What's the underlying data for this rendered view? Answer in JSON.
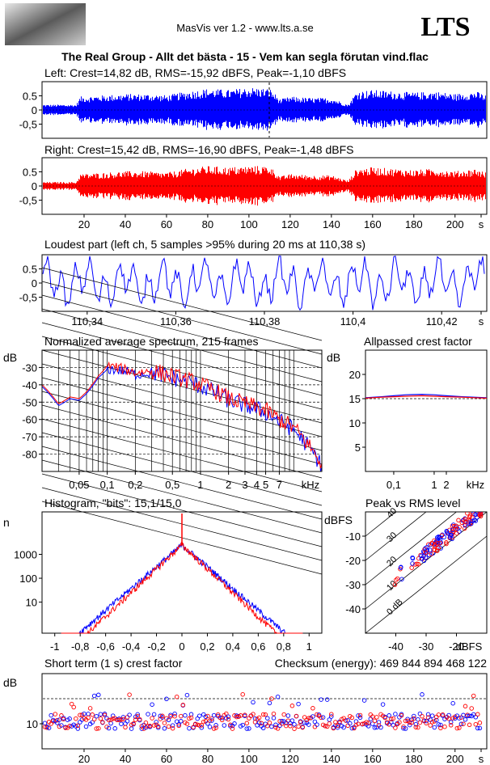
{
  "header": {
    "app_title": "MasVis ver 1.2 - www.lts.a.se",
    "logo_text": "LTS",
    "track_title": "The Real Group - Allt det bästa - 15 - Vem kan segla förutan vind.flac"
  },
  "colors": {
    "left": "#0000ff",
    "right": "#ff0000",
    "grid": "#000000"
  },
  "chart_data": [
    {
      "type": "line",
      "id": "left-waveform",
      "title": "Left: Crest=14,82 dB, RMS=-15,92 dBFS, Peak=-1,10 dBFS",
      "yticks": [
        "0.5",
        "0",
        "-0,5"
      ],
      "ylim": [
        -1,
        1
      ],
      "xlim": [
        0,
        215
      ],
      "series": [
        {
          "channel": "left",
          "envelope_time_s": [
            0,
            10,
            16,
            18,
            30,
            40,
            50,
            60,
            70,
            80,
            90,
            100,
            110,
            115,
            120,
            130,
            140,
            148,
            152,
            160,
            170,
            180,
            190,
            200,
            210,
            215
          ],
          "envelope_amp": [
            0.2,
            0.2,
            0.2,
            0.5,
            0.55,
            0.6,
            0.6,
            0.55,
            0.7,
            0.8,
            0.75,
            0.85,
            0.8,
            0.4,
            0.5,
            0.45,
            0.45,
            0.2,
            0.7,
            0.75,
            0.7,
            0.65,
            0.7,
            0.6,
            0.7,
            0.55
          ]
        }
      ]
    },
    {
      "type": "line",
      "id": "right-waveform",
      "title": "Right: Crest=15,42 dB, RMS=-16,90 dBFS, Peak=-1,48 dBFS",
      "yticks": [
        "0.5",
        "0",
        "-0,5"
      ],
      "ylim": [
        -1,
        1
      ],
      "xlim": [
        0,
        215
      ],
      "xticks": [
        "20",
        "40",
        "60",
        "80",
        "100",
        "120",
        "140",
        "160",
        "180",
        "200",
        "s"
      ],
      "series": [
        {
          "channel": "right",
          "envelope_time_s": [
            0,
            10,
            16,
            18,
            30,
            40,
            50,
            60,
            70,
            80,
            90,
            100,
            110,
            115,
            120,
            130,
            140,
            148,
            152,
            160,
            170,
            180,
            190,
            200,
            210,
            215
          ],
          "envelope_amp": [
            0.15,
            0.15,
            0.15,
            0.45,
            0.5,
            0.55,
            0.55,
            0.5,
            0.65,
            0.75,
            0.7,
            0.75,
            0.75,
            0.35,
            0.45,
            0.4,
            0.4,
            0.2,
            0.65,
            0.7,
            0.65,
            0.6,
            0.65,
            0.55,
            0.65,
            0.5
          ]
        }
      ]
    },
    {
      "type": "line",
      "id": "loudest-part",
      "title": "Loudest part (left  ch, 5 samples >95% during 20 ms at 110,38 s)",
      "yticks": [
        "0.5",
        "0",
        "-0,5"
      ],
      "ylim": [
        -1,
        1
      ],
      "xlim": [
        110.33,
        110.43
      ],
      "xticks": [
        "110,34",
        "110,36",
        "110,38",
        "110,4",
        "110,42",
        "s"
      ]
    },
    {
      "type": "line",
      "id": "average-spectrum",
      "title": "Normalized average spectrum, 215 frames",
      "ylabel": "dB",
      "yticks": [
        "-30",
        "-40",
        "-50",
        "-60",
        "-70",
        "-80"
      ],
      "ylim": [
        -90,
        -20
      ],
      "xticks": [
        "0,05",
        "0,1",
        "0,2",
        "0,5",
        "1",
        "2",
        "3",
        "4",
        "5",
        "7",
        "kHz"
      ],
      "xlim_khz": [
        0.02,
        20
      ],
      "series": [
        {
          "channel": "left",
          "freq_khz": [
            0.02,
            0.03,
            0.04,
            0.05,
            0.06,
            0.08,
            0.1,
            0.15,
            0.2,
            0.3,
            0.5,
            0.7,
            1,
            1.5,
            2,
            3,
            5,
            7,
            10,
            14,
            20
          ],
          "db": [
            -41,
            -52,
            -48,
            -49,
            -45,
            -36,
            -31,
            -32,
            -34,
            -33,
            -36,
            -38,
            -41,
            -45,
            -49,
            -52,
            -56,
            -61,
            -66,
            -75,
            -87
          ]
        },
        {
          "channel": "right",
          "freq_khz": [
            0.02,
            0.03,
            0.04,
            0.05,
            0.06,
            0.08,
            0.1,
            0.15,
            0.2,
            0.3,
            0.5,
            0.7,
            1,
            1.5,
            2,
            3,
            5,
            7,
            10,
            14,
            20
          ],
          "db": [
            -40,
            -51,
            -47,
            -48,
            -44,
            -35,
            -29,
            -31,
            -33,
            -32,
            -35,
            -37,
            -40,
            -44,
            -48,
            -51,
            -55,
            -60,
            -65,
            -74,
            -86
          ]
        }
      ]
    },
    {
      "type": "line",
      "id": "allpassed-crest",
      "title": "Allpassed crest factor",
      "ylabel": "dB",
      "yticks": [
        "20",
        "15",
        "10",
        "5"
      ],
      "ylim": [
        0,
        25
      ],
      "xticks": [
        "0,1",
        "1",
        "2",
        "kHz"
      ],
      "series": [
        {
          "channel": "left",
          "freq_khz": [
            0.02,
            0.05,
            0.1,
            0.2,
            0.5,
            1,
            2,
            5,
            10,
            20
          ],
          "db": [
            15.2,
            15.4,
            15.6,
            15.8,
            15.9,
            15.8,
            15.6,
            15.4,
            15.3,
            15.2
          ]
        },
        {
          "channel": "right",
          "freq_khz": [
            0.02,
            0.05,
            0.1,
            0.2,
            0.5,
            1,
            2,
            5,
            10,
            20
          ],
          "db": [
            15.1,
            15.3,
            15.4,
            15.5,
            15.6,
            15.5,
            15.4,
            15.3,
            15.2,
            15.1
          ]
        }
      ]
    },
    {
      "type": "line",
      "id": "histogram",
      "title": "Histogram, \"bits\": 15,1/15,0",
      "ylabel": "n",
      "yticks": [
        "1000",
        "100",
        "10"
      ],
      "xticks": [
        "-1",
        "-0,8",
        "-0,6",
        "-0,4",
        "-0,2",
        "0",
        "0,2",
        "0,4",
        "0,6",
        "0,8",
        "1"
      ],
      "xlim": [
        -1.1,
        1.1
      ],
      "scale": "log-y"
    },
    {
      "type": "scatter",
      "id": "peak-vs-rms",
      "title": "Peak vs RMS level",
      "ylabel": "dBFS",
      "xlabel": "dBFS",
      "yticks": [
        "-10",
        "-20",
        "-30",
        "-40"
      ],
      "xticks": [
        "-40",
        "-30",
        "-20"
      ],
      "xlim": [
        -50,
        -10
      ],
      "ylim": [
        -50,
        0
      ],
      "diagonals": [
        "40",
        "30",
        "20",
        "10",
        "0 dB"
      ]
    },
    {
      "type": "scatter",
      "id": "short-term-crest",
      "title": "Short term (1 s) crest factor",
      "checksum": "Checksum (energy):   469 844 894 468 122",
      "ylabel": "dB",
      "yticks": [
        "10"
      ],
      "xticks": [
        "20",
        "40",
        "60",
        "80",
        "100",
        "120",
        "140",
        "160",
        "180",
        "200",
        "s"
      ],
      "xlim": [
        0,
        215
      ]
    }
  ]
}
